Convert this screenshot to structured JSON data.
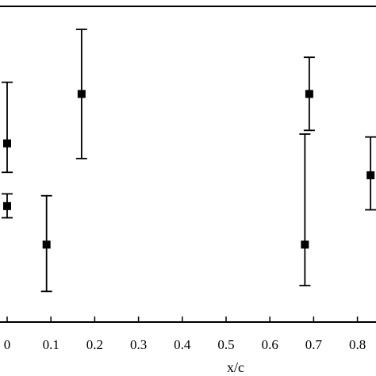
{
  "chart_data": {
    "type": "scatter",
    "title": "",
    "xlabel": "x/c",
    "ylabel": "",
    "xlim": [
      -0.01,
      0.84
    ],
    "ylim": [
      0,
      1
    ],
    "grid": false,
    "x_ticks": [
      0,
      0.1,
      0.2,
      0.3,
      0.4,
      0.5,
      0.6,
      0.7,
      0.8
    ],
    "x_tick_labels": [
      "0",
      "0.1",
      "0.2",
      "0.3",
      "0.4",
      "0.5",
      "0.6",
      "0.7",
      "0.8"
    ],
    "series": [
      {
        "marker": "square",
        "color": "#000000",
        "points": [
          {
            "x": 0.0,
            "y": 0.553,
            "ylow": 0.444,
            "yhigh": 0.783
          },
          {
            "x": 0.0,
            "y": 0.317,
            "ylow": 0.273,
            "yhigh": 0.363
          },
          {
            "x": 0.09,
            "y": 0.172,
            "ylow": -0.004,
            "yhigh": 0.356
          },
          {
            "x": 0.17,
            "y": 0.739,
            "ylow": 0.496,
            "yhigh": 0.982
          },
          {
            "x": 0.68,
            "y": 0.172,
            "ylow": 0.018,
            "yhigh": 0.588
          },
          {
            "x": 0.69,
            "y": 0.739,
            "ylow": 0.602,
            "yhigh": 0.877
          },
          {
            "x": 0.83,
            "y": 0.433,
            "ylow": 0.303,
            "yhigh": 0.577
          }
        ]
      }
    ]
  }
}
